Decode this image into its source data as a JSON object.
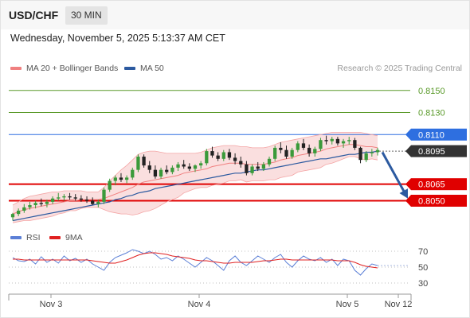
{
  "header": {
    "symbol": "USD/CHF",
    "timeframe": "30 MIN",
    "datetime": "Wednesday, November 5, 2025 5:13:37 AM CET"
  },
  "legend": {
    "ma20": {
      "label": "MA 20 + Bollinger Bands",
      "color": "#f08080"
    },
    "ma50": {
      "label": "MA 50",
      "color": "#2c5aa0"
    },
    "rsi": {
      "label": "RSI",
      "color": "#5b7fd6"
    },
    "ma9": {
      "label": "9MA",
      "color": "#e02020"
    }
  },
  "copyright": "Research © 2025 Trading Central",
  "chart_data": {
    "type": "candlestick",
    "price_range": [
      0.8028,
      0.8165
    ],
    "levels": [
      {
        "value": 0.815,
        "label": "0.8150",
        "kind": "target",
        "color": "#5a9a2a"
      },
      {
        "value": 0.813,
        "label": "0.8130",
        "kind": "target",
        "color": "#5a9a2a"
      },
      {
        "value": 0.811,
        "label": "0.8110",
        "kind": "resistance",
        "color": "#2e6fe0"
      },
      {
        "value": 0.8095,
        "label": "0.8095",
        "kind": "current",
        "color": "#333333"
      },
      {
        "value": 0.8065,
        "label": "0.8065",
        "kind": "support",
        "color": "#e00000"
      },
      {
        "value": 0.805,
        "label": "0.8050",
        "kind": "support",
        "color": "#e00000"
      }
    ],
    "x_ticks": [
      "Nov 3",
      "Nov 4",
      "Nov 5",
      "Nov 12"
    ],
    "candles": [
      [
        0.8035,
        0.8039,
        0.8032,
        0.8038
      ],
      [
        0.8038,
        0.8043,
        0.8036,
        0.8041
      ],
      [
        0.8041,
        0.8047,
        0.8039,
        0.8044
      ],
      [
        0.8044,
        0.8049,
        0.8042,
        0.8046
      ],
      [
        0.8046,
        0.805,
        0.8043,
        0.8048
      ],
      [
        0.8048,
        0.8052,
        0.8045,
        0.8047
      ],
      [
        0.8047,
        0.8051,
        0.8044,
        0.8049
      ],
      [
        0.8049,
        0.8054,
        0.8047,
        0.8052
      ],
      [
        0.8052,
        0.8057,
        0.805,
        0.8053
      ],
      [
        0.8053,
        0.8056,
        0.805,
        0.8054
      ],
      [
        0.8054,
        0.8057,
        0.8051,
        0.8053
      ],
      [
        0.8053,
        0.8056,
        0.805,
        0.8052
      ],
      [
        0.8052,
        0.8055,
        0.8049,
        0.8051
      ],
      [
        0.8051,
        0.8054,
        0.8048,
        0.805
      ],
      [
        0.805,
        0.8053,
        0.8046,
        0.8047
      ],
      [
        0.8047,
        0.8051,
        0.8044,
        0.8049
      ],
      [
        0.8049,
        0.8062,
        0.8047,
        0.806
      ],
      [
        0.806,
        0.807,
        0.8058,
        0.8068
      ],
      [
        0.8068,
        0.8073,
        0.8064,
        0.8071
      ],
      [
        0.8071,
        0.8075,
        0.8067,
        0.8069
      ],
      [
        0.8069,
        0.8073,
        0.8066,
        0.8071
      ],
      [
        0.8071,
        0.808,
        0.8069,
        0.8078
      ],
      [
        0.8078,
        0.8092,
        0.8076,
        0.809
      ],
      [
        0.809,
        0.8092,
        0.808,
        0.8082
      ],
      [
        0.8082,
        0.8086,
        0.8075,
        0.8078
      ],
      [
        0.8078,
        0.8082,
        0.807,
        0.8072
      ],
      [
        0.8072,
        0.808,
        0.807,
        0.8078
      ],
      [
        0.8078,
        0.8082,
        0.8074,
        0.8076
      ],
      [
        0.8076,
        0.8082,
        0.8074,
        0.808
      ],
      [
        0.808,
        0.8085,
        0.8077,
        0.8083
      ],
      [
        0.8083,
        0.8087,
        0.8079,
        0.8081
      ],
      [
        0.8081,
        0.8084,
        0.8077,
        0.8079
      ],
      [
        0.8079,
        0.8083,
        0.8076,
        0.8082
      ],
      [
        0.8082,
        0.8086,
        0.8079,
        0.8084
      ],
      [
        0.8084,
        0.8097,
        0.8082,
        0.8095
      ],
      [
        0.8095,
        0.8099,
        0.8089,
        0.8091
      ],
      [
        0.8091,
        0.8094,
        0.8086,
        0.8088
      ],
      [
        0.8088,
        0.8096,
        0.8086,
        0.8094
      ],
      [
        0.8094,
        0.8097,
        0.8087,
        0.8089
      ],
      [
        0.8089,
        0.8093,
        0.8083,
        0.8086
      ],
      [
        0.8086,
        0.809,
        0.808,
        0.8083
      ],
      [
        0.8083,
        0.8086,
        0.8073,
        0.8075
      ],
      [
        0.8075,
        0.8083,
        0.8073,
        0.8081
      ],
      [
        0.8081,
        0.8085,
        0.8077,
        0.8079
      ],
      [
        0.8079,
        0.8085,
        0.8077,
        0.8083
      ],
      [
        0.8083,
        0.809,
        0.8081,
        0.8088
      ],
      [
        0.8088,
        0.81,
        0.8086,
        0.8098
      ],
      [
        0.8098,
        0.8103,
        0.8093,
        0.8096
      ],
      [
        0.8096,
        0.81,
        0.8088,
        0.809
      ],
      [
        0.809,
        0.8098,
        0.8088,
        0.8096
      ],
      [
        0.8096,
        0.8104,
        0.8094,
        0.8102
      ],
      [
        0.8102,
        0.8106,
        0.8096,
        0.8098
      ],
      [
        0.8098,
        0.8101,
        0.809,
        0.8093
      ],
      [
        0.8093,
        0.8099,
        0.809,
        0.8097
      ],
      [
        0.8097,
        0.8107,
        0.8095,
        0.8105
      ],
      [
        0.8105,
        0.8109,
        0.8101,
        0.8104
      ],
      [
        0.8104,
        0.8108,
        0.8101,
        0.8106
      ],
      [
        0.8106,
        0.8108,
        0.81,
        0.8102
      ],
      [
        0.8102,
        0.8106,
        0.8098,
        0.8104
      ],
      [
        0.8104,
        0.8108,
        0.8101,
        0.8105
      ],
      [
        0.8105,
        0.8107,
        0.8096,
        0.8098
      ],
      [
        0.8098,
        0.8099,
        0.8084,
        0.8087
      ],
      [
        0.8087,
        0.8095,
        0.8085,
        0.8093
      ],
      [
        0.8093,
        0.8097,
        0.809,
        0.8094
      ],
      [
        0.8094,
        0.8098,
        0.8091,
        0.8096
      ]
    ],
    "ma20": [
      0.8038,
      0.804,
      0.8042,
      0.8043,
      0.8044,
      0.8045,
      0.8046,
      0.8047,
      0.8048,
      0.8049,
      0.805,
      0.805,
      0.8051,
      0.8051,
      0.8051,
      0.8051,
      0.8052,
      0.8054,
      0.8056,
      0.8058,
      0.806,
      0.8062,
      0.8065,
      0.8067,
      0.8068,
      0.8069,
      0.807,
      0.8071,
      0.8072,
      0.8073,
      0.8075,
      0.8076,
      0.8077,
      0.8078,
      0.8079,
      0.8081,
      0.8082,
      0.8083,
      0.8084,
      0.8084,
      0.8084,
      0.8083,
      0.8083,
      0.8083,
      0.8083,
      0.8084,
      0.8085,
      0.8087,
      0.8088,
      0.8089,
      0.8091,
      0.8092,
      0.8093,
      0.8094,
      0.8095,
      0.8097,
      0.8098,
      0.8099,
      0.81,
      0.8101,
      0.8101,
      0.81,
      0.8099,
      0.8099,
      0.8098
    ],
    "bb_upper": [
      0.8046,
      0.8049,
      0.8052,
      0.8054,
      0.8055,
      0.8056,
      0.8057,
      0.8058,
      0.8058,
      0.8059,
      0.8059,
      0.8059,
      0.8059,
      0.8058,
      0.8058,
      0.8058,
      0.8062,
      0.8068,
      0.8073,
      0.8078,
      0.8082,
      0.8087,
      0.8092,
      0.8094,
      0.8095,
      0.8095,
      0.8094,
      0.8093,
      0.8093,
      0.8093,
      0.8093,
      0.8093,
      0.8093,
      0.8094,
      0.8096,
      0.8098,
      0.8099,
      0.81,
      0.81,
      0.81,
      0.8099,
      0.8099,
      0.8098,
      0.8098,
      0.8098,
      0.8099,
      0.8101,
      0.8103,
      0.8104,
      0.8105,
      0.8106,
      0.8107,
      0.8108,
      0.8109,
      0.811,
      0.8111,
      0.8112,
      0.8112,
      0.8112,
      0.8112,
      0.8112,
      0.8112,
      0.8111,
      0.811,
      0.8109
    ],
    "bb_lower": [
      0.803,
      0.8031,
      0.8032,
      0.8032,
      0.8033,
      0.8034,
      0.8035,
      0.8036,
      0.8038,
      0.8039,
      0.8041,
      0.8041,
      0.8043,
      0.8044,
      0.8044,
      0.8044,
      0.8042,
      0.804,
      0.8039,
      0.8038,
      0.8038,
      0.8037,
      0.8038,
      0.804,
      0.8041,
      0.8043,
      0.8046,
      0.8049,
      0.8051,
      0.8053,
      0.8057,
      0.8059,
      0.8061,
      0.8062,
      0.8062,
      0.8064,
      0.8065,
      0.8066,
      0.8068,
      0.8068,
      0.8069,
      0.8067,
      0.8068,
      0.8068,
      0.8068,
      0.8069,
      0.8069,
      0.8071,
      0.8072,
      0.8073,
      0.8076,
      0.8077,
      0.8078,
      0.8079,
      0.808,
      0.8083,
      0.8084,
      0.8086,
      0.8088,
      0.809,
      0.809,
      0.8088,
      0.8087,
      0.8088,
      0.8087
    ],
    "ma50": [
      0.8032,
      0.8033,
      0.8034,
      0.8035,
      0.8036,
      0.8037,
      0.8038,
      0.8039,
      0.804,
      0.8041,
      0.8042,
      0.8043,
      0.8044,
      0.8045,
      0.8046,
      0.8047,
      0.8048,
      0.8049,
      0.8051,
      0.8052,
      0.8054,
      0.8055,
      0.8057,
      0.8058,
      0.8059,
      0.8061,
      0.8062,
      0.8063,
      0.8064,
      0.8065,
      0.8066,
      0.8067,
      0.8068,
      0.8069,
      0.807,
      0.8071,
      0.8072,
      0.8073,
      0.8074,
      0.8075,
      0.8075,
      0.8076,
      0.8077,
      0.8078,
      0.8078,
      0.8079,
      0.808,
      0.8081,
      0.8082,
      0.8083,
      0.8084,
      0.8085,
      0.8086,
      0.8087,
      0.8088,
      0.8088,
      0.8089,
      0.809,
      0.8091,
      0.8092,
      0.8092,
      0.8093,
      0.8094,
      0.8094,
      0.8095
    ],
    "forecast_arrow": {
      "from": 0.8094,
      "to": 0.8052
    },
    "rsi": {
      "range": [
        20,
        80
      ],
      "ticks": [
        70,
        50,
        30
      ],
      "rsi_values": [
        62,
        58,
        57,
        60,
        54,
        63,
        56,
        60,
        55,
        64,
        58,
        61,
        56,
        60,
        54,
        50,
        46,
        56,
        62,
        65,
        68,
        72,
        70,
        67,
        70,
        66,
        60,
        62,
        58,
        64,
        60,
        55,
        50,
        56,
        62,
        58,
        52,
        46,
        58,
        64,
        56,
        52,
        58,
        64,
        60,
        56,
        62,
        66,
        56,
        50,
        58,
        64,
        60,
        58,
        62,
        56,
        60,
        52,
        60,
        58,
        46,
        40,
        48,
        54,
        52
      ],
      "ma9_values": [
        60,
        60,
        59,
        59,
        59,
        59,
        59,
        59,
        59,
        59,
        59,
        59,
        59,
        59,
        58,
        57,
        56,
        55,
        55,
        57,
        59,
        62,
        65,
        67,
        68,
        68,
        67,
        66,
        64,
        63,
        62,
        61,
        59,
        58,
        58,
        57,
        56,
        55,
        55,
        56,
        56,
        56,
        56,
        57,
        58,
        58,
        59,
        60,
        60,
        59,
        59,
        59,
        59,
        59,
        59,
        59,
        59,
        58,
        58,
        58,
        56,
        53,
        51,
        50,
        49
      ]
    }
  }
}
